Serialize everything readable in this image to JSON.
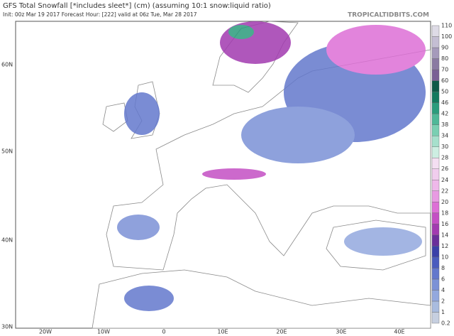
{
  "header": {
    "title": "GFS Total Snowfall [*includes sleet*] (cm) (assuming 10:1 snow:liquid ratio)",
    "subtitle": "Init: 00z Mar 19 2017   Forecast Hour: [222]   valid at 06z Tue, Mar 28 2017",
    "watermark": "TROPICALTIDBITS.COM"
  },
  "map": {
    "lat_labels": [
      "60N",
      "50N",
      "40N",
      "30N"
    ],
    "lon_labels": [
      "20W",
      "10W",
      "0",
      "10E",
      "20E",
      "30E",
      "40E"
    ]
  },
  "colorbar": {
    "levels": [
      0.2,
      1,
      2,
      4,
      6,
      8,
      10,
      12,
      14,
      16,
      18,
      20,
      22,
      24,
      26,
      28,
      30,
      34,
      38,
      42,
      46,
      50,
      60,
      70,
      80,
      90,
      100,
      110
    ],
    "colors": [
      "#c6cfe0",
      "#a9bcdf",
      "#93a8de",
      "#7b91d6",
      "#6378cc",
      "#4a5cbe",
      "#3b40a8",
      "#6a2f9a",
      "#a23ab0",
      "#c44fc4",
      "#dd6fd6",
      "#e89ae2",
      "#efb8ea",
      "#f1cdee",
      "#f4dff2",
      "#cdeee2",
      "#a6e0cc",
      "#7acfb2",
      "#4fb898",
      "#2b9c7c",
      "#137a5e",
      "#0e5a48",
      "#7a5f95",
      "#8a7aa2",
      "#a59abb",
      "#c4bed3",
      "#dedbe6"
    ]
  }
}
